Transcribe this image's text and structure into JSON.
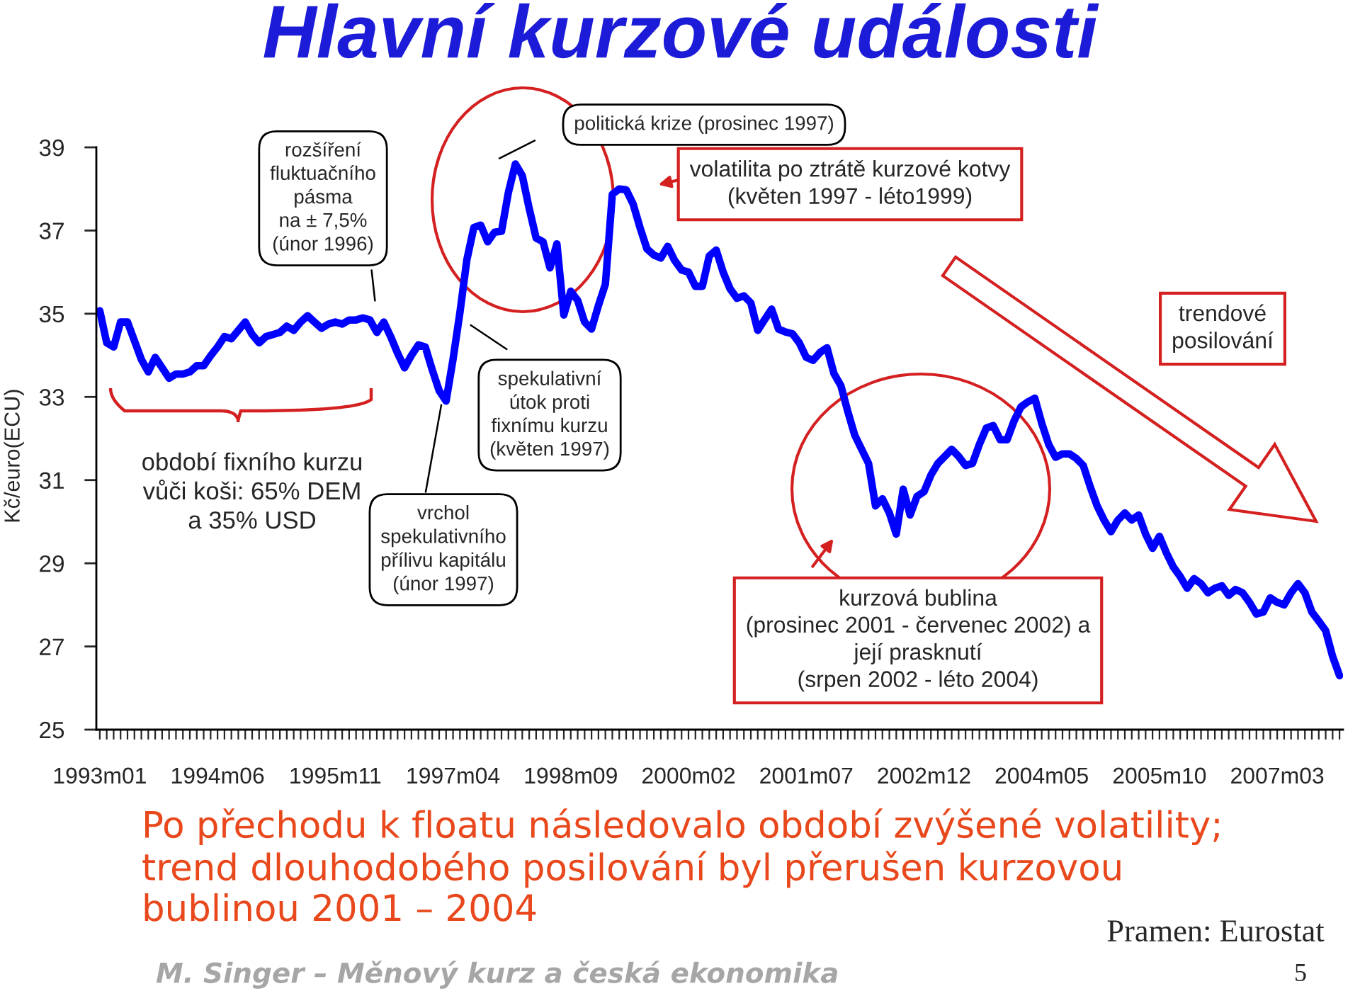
{
  "chart_data": {
    "type": "line",
    "title": "Hlavní kurzové události",
    "ylabel": "Kč/euro(ECU)",
    "categories": [
      "1993m01",
      null,
      null,
      null,
      null,
      null,
      null,
      null,
      null,
      null,
      null,
      null,
      null,
      null,
      null,
      null,
      null,
      "1994m06",
      null,
      null,
      null,
      null,
      null,
      null,
      null,
      null,
      null,
      null,
      null,
      null,
      null,
      null,
      null,
      null,
      "1995m11",
      null,
      null,
      null,
      null,
      null,
      null,
      null,
      null,
      null,
      null,
      null,
      null,
      null,
      null,
      null,
      null,
      "1997m04",
      null,
      null,
      null,
      null,
      null,
      null,
      null,
      null,
      null,
      null,
      null,
      null,
      null,
      null,
      null,
      null,
      "1998m09",
      null,
      null,
      null,
      null,
      null,
      null,
      null,
      null,
      null,
      null,
      null,
      null,
      null,
      null,
      null,
      null,
      "2000m02",
      null,
      null,
      null,
      null,
      null,
      null,
      null,
      null,
      null,
      null,
      null,
      null,
      null,
      null,
      null,
      null,
      "2001m07",
      null,
      null,
      null,
      null,
      null,
      null,
      null,
      null,
      null,
      null,
      null,
      null,
      null,
      null,
      null,
      null,
      "2002m12",
      null,
      null,
      null,
      null,
      null,
      null,
      null,
      null,
      null,
      null,
      null,
      null,
      null,
      null,
      null,
      null,
      "2004m05",
      null,
      null,
      null,
      null,
      null,
      null,
      null,
      null,
      null,
      null,
      null,
      null,
      null,
      null,
      null,
      null,
      "2005m10",
      null,
      null,
      null,
      null,
      null,
      null,
      null,
      null,
      null,
      null,
      null,
      null,
      null,
      null,
      null,
      null,
      "2007m03",
      null,
      null,
      null,
      null,
      null,
      null,
      null,
      null,
      null
    ],
    "series": [
      {
        "color": "#0000ff",
        "values": [
          35.07,
          34.3,
          34.2,
          34.8,
          34.8,
          34.35,
          33.9,
          33.6,
          33.95,
          33.7,
          33.45,
          33.55,
          33.55,
          33.6,
          33.75,
          33.75,
          33.99,
          34.2,
          34.45,
          34.4,
          34.6,
          34.8,
          34.5,
          34.3,
          34.45,
          34.5,
          34.55,
          34.7,
          34.6,
          34.8,
          34.95,
          34.8,
          34.65,
          34.75,
          34.8,
          34.75,
          34.85,
          34.85,
          34.9,
          34.85,
          34.55,
          34.8,
          34.45,
          34.05,
          33.7,
          34.0,
          34.25,
          34.2,
          33.65,
          33.15,
          32.9,
          33.9,
          35.03,
          36.3,
          37.07,
          37.13,
          36.73,
          36.96,
          36.98,
          37.92,
          38.6,
          38.32,
          37.53,
          36.82,
          36.73,
          36.1,
          36.68,
          34.97,
          35.54,
          35.32,
          34.8,
          34.63,
          35.2,
          35.71,
          37.87,
          38.0,
          37.98,
          37.64,
          37.07,
          36.56,
          36.41,
          36.34,
          36.62,
          36.28,
          36.05,
          36.0,
          35.66,
          35.66,
          36.39,
          36.53,
          36.0,
          35.6,
          35.37,
          35.43,
          35.26,
          34.6,
          34.86,
          35.11,
          34.63,
          34.56,
          34.52,
          34.3,
          33.95,
          33.88,
          34.07,
          34.18,
          33.56,
          33.27,
          32.65,
          32.08,
          31.74,
          31.4,
          30.38,
          30.55,
          30.21,
          29.7,
          30.78,
          30.16,
          30.61,
          30.72,
          31.12,
          31.4,
          31.57,
          31.74,
          31.57,
          31.35,
          31.4,
          31.86,
          32.25,
          32.31,
          31.97,
          31.97,
          32.42,
          32.76,
          32.88,
          32.97,
          32.37,
          31.86,
          31.55,
          31.63,
          31.63,
          31.52,
          31.35,
          30.84,
          30.38,
          30.04,
          29.76,
          30.04,
          30.21,
          30.04,
          30.16,
          29.7,
          29.36,
          29.65,
          29.25,
          28.91,
          28.68,
          28.4,
          28.63,
          28.51,
          28.29,
          28.4,
          28.46,
          28.23,
          28.37,
          28.29,
          28.06,
          27.78,
          27.83,
          28.17,
          28.06,
          28.0,
          28.29,
          28.51,
          28.29,
          27.83,
          27.61,
          27.38,
          26.76,
          26.3
        ]
      }
    ],
    "ylim": [
      25,
      39
    ],
    "yticks": [
      25,
      27,
      29,
      31,
      33,
      35,
      37,
      39
    ],
    "annotations": [
      "rozšíření\nfluktuačního\npásma\nna ± 7,5%\n(únor 1996)",
      "politická krize (prosinec 1997)",
      "volatilita po ztrátě kurzové kotvy\n(květen 1997 - léto1999)",
      "trendové\nposilování",
      "období fixního kurzu\nvůči koši: 65% DEM\na 35% USD",
      "spekulativní\nútok proti\nfixnímu kurzu\n(květen 1997)",
      {
        "text": "vrchol\nspekulativního\npřílivu kapitálu\n(únor 1997)",
        "y": 32.9
      },
      "kurzová bublina\n(prosinec 2001 - červenec 2002) a\njejí prasknutí\n(srpen 2002 - léto 2004)",
      "Po přechodu k floatu následovalo období zvýšené volatility;\ntrend dlouhodobého posilování byl přerušen kurzovou\nbublinou 2001 – 2004",
      "Pramen: Eurostat",
      "M. Singer – Měnový kurz a česká ekonomika",
      "5"
    ]
  }
}
